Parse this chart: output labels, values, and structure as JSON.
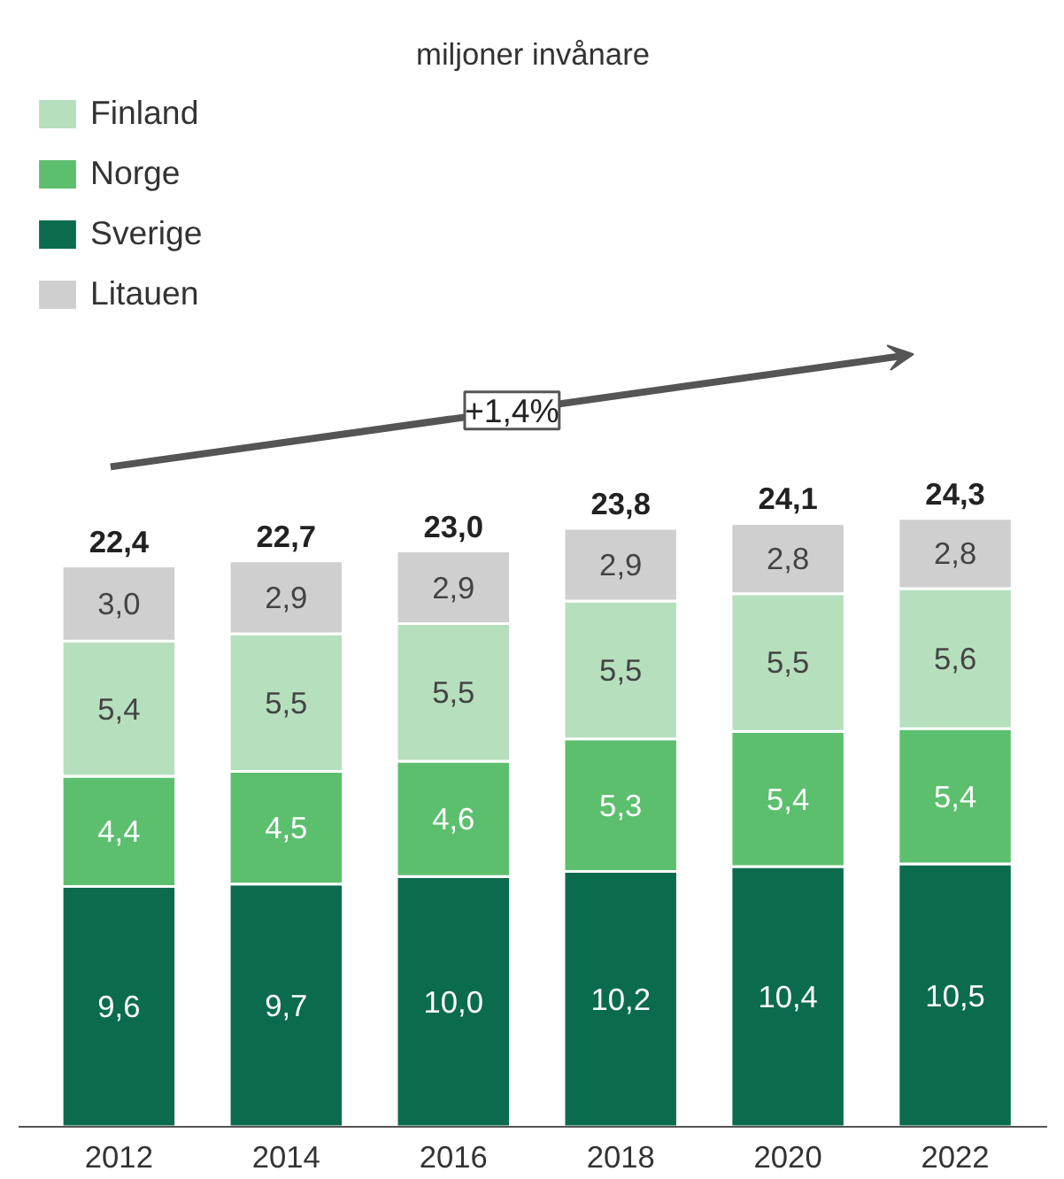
{
  "chart_data": {
    "type": "bar",
    "stacked": true,
    "title": "miljoner invånare",
    "categories": [
      "2012",
      "2014",
      "2016",
      "2018",
      "2020",
      "2022"
    ],
    "series": [
      {
        "name": "Sverige",
        "color": "#0b6b4f",
        "values": [
          9.6,
          9.7,
          10.0,
          10.2,
          10.4,
          10.5
        ],
        "value_labels": [
          "9,6",
          "9,7",
          "10,0",
          "10,2",
          "10,4",
          "10,5"
        ]
      },
      {
        "name": "Norge",
        "color": "#5cbf6e",
        "values": [
          4.4,
          4.5,
          4.6,
          5.3,
          5.4,
          5.4
        ],
        "value_labels": [
          "4,4",
          "4,5",
          "4,6",
          "5,3",
          "5,4",
          "5,4"
        ]
      },
      {
        "name": "Finland",
        "color": "#b6dfbe",
        "values": [
          5.4,
          5.5,
          5.5,
          5.5,
          5.5,
          5.6
        ],
        "value_labels": [
          "5,4",
          "5,5",
          "5,5",
          "5,5",
          "5,5",
          "5,6"
        ]
      },
      {
        "name": "Litauen",
        "color": "#cfcfcf",
        "values": [
          3.0,
          2.9,
          2.9,
          2.9,
          2.8,
          2.8
        ],
        "value_labels": [
          "3,0",
          "2,9",
          "2,9",
          "2,9",
          "2,8",
          "2,8"
        ]
      }
    ],
    "totals": [
      "22,4",
      "22,7",
      "23,0",
      "23,8",
      "24,1",
      "24,3"
    ],
    "annotations": [
      "+1,4%"
    ],
    "legend": "top left",
    "grid": false
  }
}
